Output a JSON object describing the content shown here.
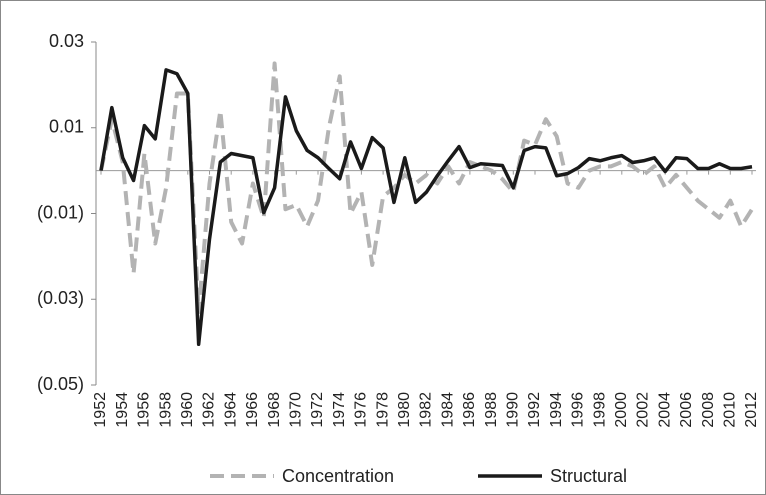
{
  "chart_data": {
    "type": "line",
    "x": [
      1952,
      1953,
      1954,
      1955,
      1956,
      1957,
      1958,
      1959,
      1960,
      1961,
      1962,
      1963,
      1964,
      1965,
      1966,
      1967,
      1968,
      1969,
      1970,
      1971,
      1972,
      1973,
      1974,
      1975,
      1976,
      1977,
      1978,
      1979,
      1980,
      1981,
      1982,
      1983,
      1984,
      1985,
      1986,
      1987,
      1988,
      1989,
      1990,
      1991,
      1992,
      1993,
      1994,
      1995,
      1996,
      1997,
      1998,
      1999,
      2000,
      2001,
      2002,
      2003,
      2004,
      2005,
      2006,
      2007,
      2008,
      2009,
      2010,
      2011,
      2012
    ],
    "series": [
      {
        "name": "Concentration",
        "color": "#b3b3b3",
        "style": "dashed",
        "values": [
          0,
          0.012,
          0.002,
          -0.024,
          0.004,
          -0.017,
          -0.004,
          0.018,
          0.018,
          -0.033,
          -0.003,
          0.014,
          -0.012,
          -0.017,
          -0.003,
          -0.011,
          0.025,
          -0.009,
          -0.008,
          -0.013,
          -0.007,
          0.01,
          0.022,
          -0.01,
          -0.005,
          -0.022,
          -0.006,
          -0.004,
          -0.001,
          -0.003,
          -0.001,
          -0.003,
          0.001,
          -0.003,
          0.002,
          0.001,
          0.0,
          -0.002,
          -0.005,
          0.007,
          0.006,
          0.012,
          0.008,
          -0.003,
          -0.004,
          0.0,
          0.001,
          0.001,
          0.002,
          0.001,
          -0.001,
          0.001,
          -0.004,
          -0.001,
          -0.004,
          -0.007,
          -0.009,
          -0.011,
          -0.007,
          -0.013,
          -0.009
        ]
      },
      {
        "name": "Structural",
        "color": "#1a1a1a",
        "style": "solid",
        "values": [
          0,
          0.0147,
          0.003,
          -0.0023,
          0.0105,
          0.0074,
          0.0235,
          0.0226,
          0.018,
          -0.0405,
          -0.016,
          0.002,
          0.004,
          0.0035,
          0.003,
          -0.0098,
          -0.004,
          0.0172,
          0.0093,
          0.0047,
          0.003,
          0.0005,
          -0.0019,
          0.0067,
          0.0005,
          0.0077,
          0.0053,
          -0.0074,
          0.003,
          -0.0074,
          -0.005,
          -0.0012,
          0.0023,
          0.0056,
          0.0007,
          0.0016,
          0.0014,
          0.0012,
          -0.004,
          0.0047,
          0.0056,
          0.0053,
          -0.0012,
          -0.0007,
          0.0007,
          0.0028,
          0.0023,
          0.003,
          0.0035,
          0.0019,
          0.0023,
          0.003,
          -0.0002,
          0.003,
          0.0028,
          0.0005,
          0.0005,
          0.0016,
          0.0005,
          0.0005,
          0.0009
        ]
      }
    ],
    "xlim": [
      1952,
      2012
    ],
    "xticks": [
      1952,
      1954,
      1956,
      1958,
      1960,
      1962,
      1964,
      1966,
      1968,
      1970,
      1972,
      1974,
      1976,
      1978,
      1980,
      1982,
      1984,
      1986,
      1988,
      1990,
      1992,
      1994,
      1996,
      1998,
      2000,
      2002,
      2004,
      2006,
      2008,
      2010,
      2012
    ],
    "ylim": [
      -0.05,
      0.03
    ],
    "yticks": [
      {
        "value": -0.05,
        "label": "(0.05)"
      },
      {
        "value": -0.03,
        "label": "(0.03)"
      },
      {
        "value": -0.01,
        "label": "(0.01)"
      },
      0.01,
      0.03
    ],
    "grid": false
  }
}
